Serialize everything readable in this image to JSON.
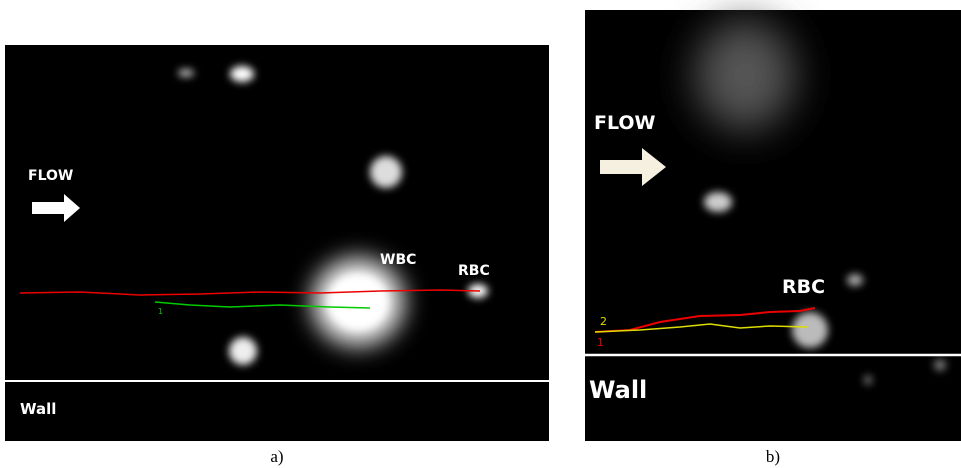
{
  "panels": [
    {
      "caption": "a)",
      "flow": "FLOW",
      "wbc": "WBC",
      "rbc": "RBC",
      "track": "1",
      "wall": "Wall"
    },
    {
      "caption": "b)",
      "flow": "FLOW",
      "rbc": "RBC",
      "track_2": "2",
      "track_1": "1",
      "wall": "Wall"
    }
  ]
}
